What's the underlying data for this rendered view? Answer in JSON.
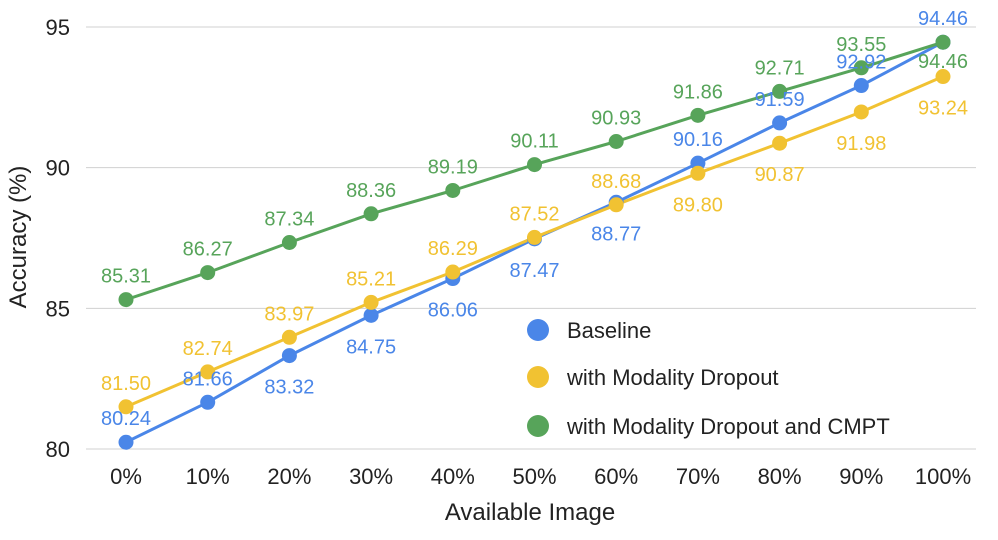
{
  "chart_data": {
    "type": "line",
    "title": "",
    "xlabel": "Available Image",
    "ylabel": "Accuracy (%)",
    "categories": [
      "0%",
      "10%",
      "20%",
      "30%",
      "40%",
      "50%",
      "60%",
      "70%",
      "80%",
      "90%",
      "100%"
    ],
    "ylim": [
      80,
      95
    ],
    "yticks": [
      80,
      85,
      90,
      95
    ],
    "grid": true,
    "legend_position": "bottom-right",
    "series": [
      {
        "name": "Baseline",
        "color": "#4A86E8",
        "values": [
          80.24,
          81.66,
          83.32,
          84.75,
          86.06,
          87.47,
          88.77,
          90.16,
          91.59,
          92.92,
          94.46
        ],
        "labels": [
          "80.24",
          "81.66",
          "83.32",
          "84.75",
          "86.06",
          "87.47",
          "88.77",
          "90.16",
          "91.59",
          "92.92",
          "94.46"
        ]
      },
      {
        "name": "with Modality Dropout",
        "color": "#F1C232",
        "values": [
          81.5,
          82.74,
          83.97,
          85.21,
          86.29,
          87.52,
          88.68,
          89.8,
          90.87,
          91.98,
          93.24
        ],
        "labels": [
          "81.50",
          "82.74",
          "83.97",
          "85.21",
          "86.29",
          "87.52",
          "88.68",
          "89.80",
          "90.87",
          "91.98",
          "93.24"
        ]
      },
      {
        "name": "with Modality Dropout and CMPT",
        "color": "#57A45A",
        "values": [
          85.31,
          86.27,
          87.34,
          88.36,
          89.19,
          90.11,
          90.93,
          91.86,
          92.71,
          93.55,
          94.46
        ],
        "labels": [
          "85.31",
          "86.27",
          "87.34",
          "88.36",
          "89.19",
          "90.11",
          "90.93",
          "91.86",
          "92.71",
          "93.55",
          "94.46"
        ]
      }
    ]
  }
}
